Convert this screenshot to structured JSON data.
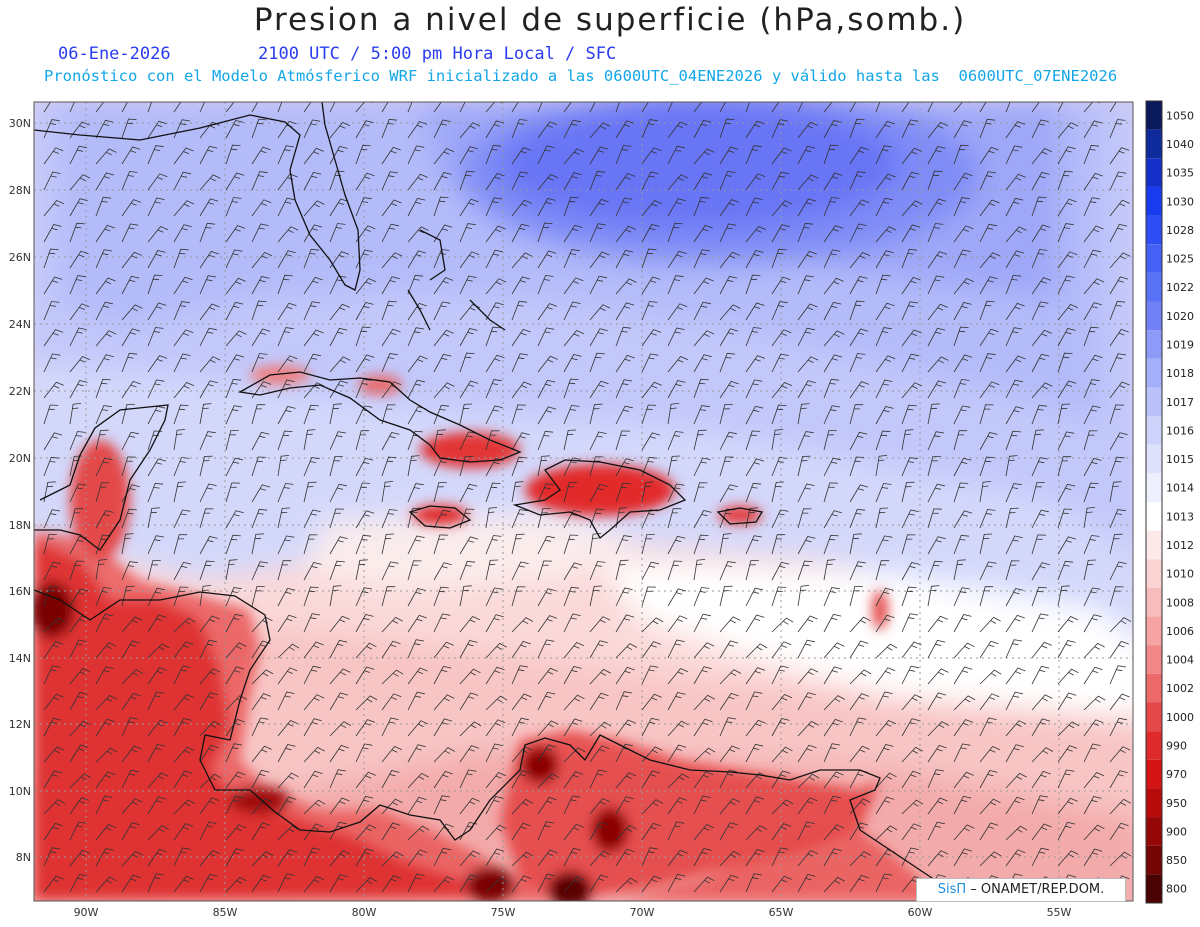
{
  "header": {
    "title": "Presion a nivel de superficie (hPa,somb.)",
    "date": "06-Ene-2026",
    "time": "2100 UTC / 5:00 pm Hora Local / SFC",
    "forecast_note": "Pronóstico con el Modelo Atmósferico WRF inicializado a las 0600UTC_04ENE2026 y válido hasta las  0600UTC_07ENE2026"
  },
  "map": {
    "lon_range": [
      -92,
      -52
    ],
    "lat_range": [
      6.8,
      30.6
    ],
    "lon_ticks": [
      "90W",
      "85W",
      "80W",
      "75W",
      "70W",
      "65W",
      "60W",
      "55W"
    ],
    "lat_ticks": [
      "30N",
      "28N",
      "26N",
      "24N",
      "22N",
      "20N",
      "18N",
      "16N",
      "14N",
      "12N",
      "10N",
      "8N"
    ],
    "wind_barbs": true,
    "grid": "dotted"
  },
  "colorbar": {
    "levels": [
      "1050",
      "1040",
      "1035",
      "1030",
      "1028",
      "1025",
      "1022",
      "1020",
      "1019",
      "1018",
      "1017",
      "1016",
      "1015",
      "1014",
      "1013",
      "1012",
      "1010",
      "1008",
      "1006",
      "1004",
      "1002",
      "1000",
      "990",
      "970",
      "950",
      "900",
      "850",
      "800"
    ],
    "colors": [
      "#0b1a5c",
      "#0f2a9a",
      "#1430c8",
      "#1a3cf0",
      "#2f4df5",
      "#4560f5",
      "#5a72f6",
      "#7282f6",
      "#8d9af7",
      "#a5aef8",
      "#bac2f9",
      "#cdd3fa",
      "#dee2fb",
      "#eef0fd",
      "#ffffff",
      "#fde9e9",
      "#fbd3d3",
      "#f8bcbc",
      "#f5a3a3",
      "#f18787",
      "#ec6a6a",
      "#e54848",
      "#de2a2a",
      "#d41515",
      "#b80b0b",
      "#960808",
      "#740505",
      "#4a0202"
    ]
  },
  "credit": {
    "brand": "SisΠ",
    "text": " – ONAMET/REP.DOM."
  }
}
